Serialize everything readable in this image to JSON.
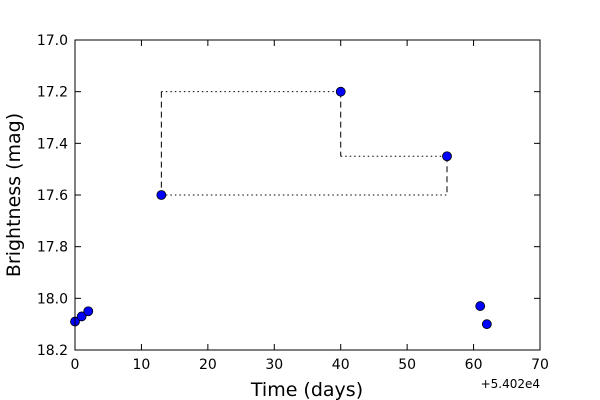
{
  "chart_data": {
    "type": "scatter",
    "xlabel": "Time (days)",
    "ylabel": "Brightness (mag)",
    "x_offset_label": "+5.402e4",
    "xlim": [
      0,
      70
    ],
    "ylim": [
      18.2,
      17.0
    ],
    "y_inverted": true,
    "x_ticks": [
      "0",
      "10",
      "20",
      "30",
      "40",
      "50",
      "60",
      "70"
    ],
    "y_ticks": [
      "17.0",
      "17.2",
      "17.4",
      "17.6",
      "17.8",
      "18.0",
      "18.2"
    ],
    "grid": false,
    "marker_color": "#0000ff",
    "points": [
      {
        "x": 0,
        "y": 18.09
      },
      {
        "x": 1,
        "y": 18.07
      },
      {
        "x": 2,
        "y": 18.05
      },
      {
        "x": 13,
        "y": 17.6
      },
      {
        "x": 40,
        "y": 17.2
      },
      {
        "x": 56,
        "y": 17.45
      },
      {
        "x": 61,
        "y": 18.03
      },
      {
        "x": 62,
        "y": 18.1
      }
    ],
    "dotted_segments": [
      {
        "x": [
          13,
          40
        ],
        "y": [
          17.2,
          17.2
        ]
      },
      {
        "x": [
          13,
          56
        ],
        "y": [
          17.6,
          17.6
        ]
      },
      {
        "x": [
          40,
          56
        ],
        "y": [
          17.45,
          17.45
        ]
      }
    ],
    "dashed_segments": [
      {
        "x": [
          13,
          13
        ],
        "y": [
          17.2,
          17.6
        ]
      },
      {
        "x": [
          40,
          40
        ],
        "y": [
          17.2,
          17.45
        ]
      },
      {
        "x": [
          56,
          56
        ],
        "y": [
          17.45,
          17.6
        ]
      }
    ]
  }
}
